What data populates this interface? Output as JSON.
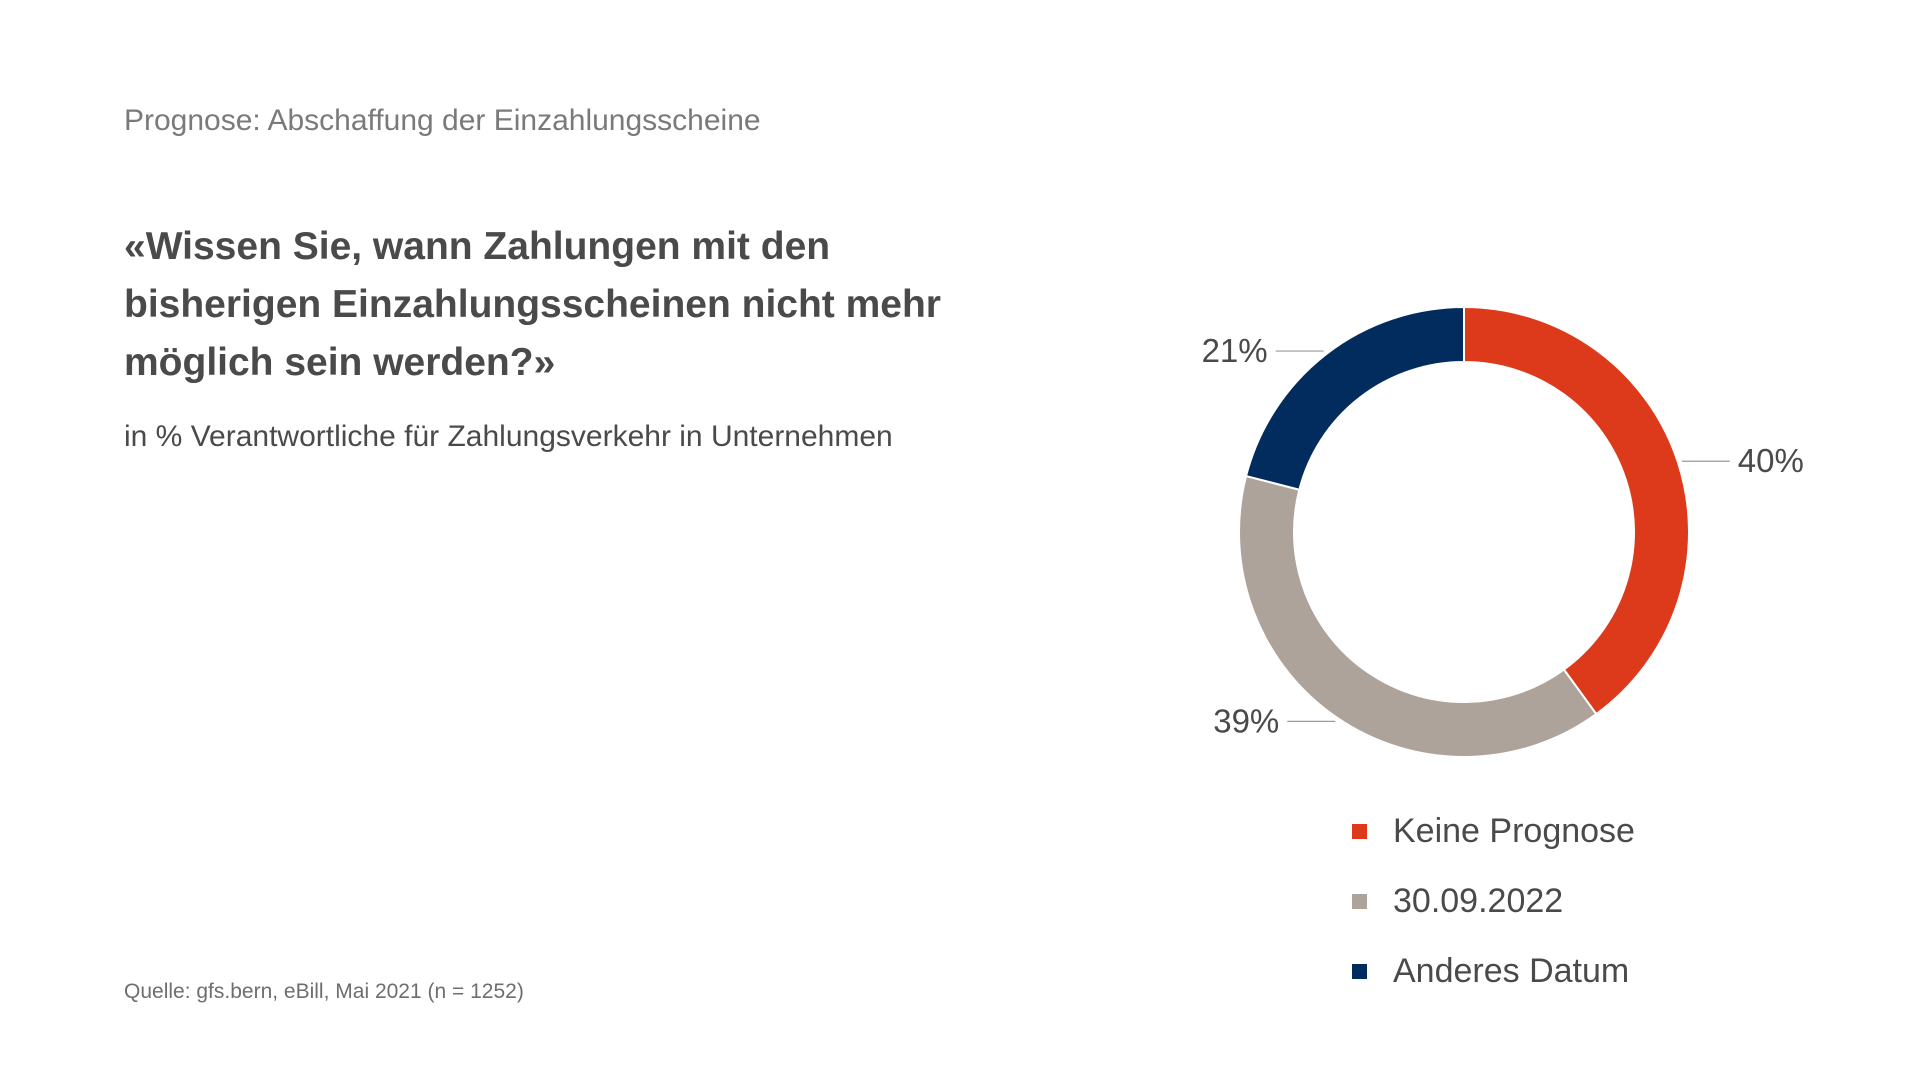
{
  "header": {
    "kicker": "Prognose: Abschaffung der Einzahlungsscheine",
    "question": "«Wissen Sie, wann Zahlungen mit den bisherigen Einzahlungsscheinen nicht mehr möglich sein werden?»",
    "subtitle": "in % Verantwortliche für Zahlungsverkehr in Unternehmen"
  },
  "footer": {
    "source": "Quelle: gfs.bern, eBill, Mai 2021 (n = 1252)"
  },
  "chart_data": {
    "type": "pie",
    "variant": "donut",
    "title": "",
    "labels": [
      "Keine Prognose",
      "30.09.2022",
      "Anderes Datum"
    ],
    "values": [
      40,
      39,
      21
    ],
    "value_labels": [
      "40%",
      "39%",
      "21%"
    ],
    "colors": [
      "#dc3a1a",
      "#aea39a",
      "#022c5e"
    ],
    "legend_position": "bottom",
    "start_angle": "12 o'clock",
    "direction": "clockwise"
  }
}
